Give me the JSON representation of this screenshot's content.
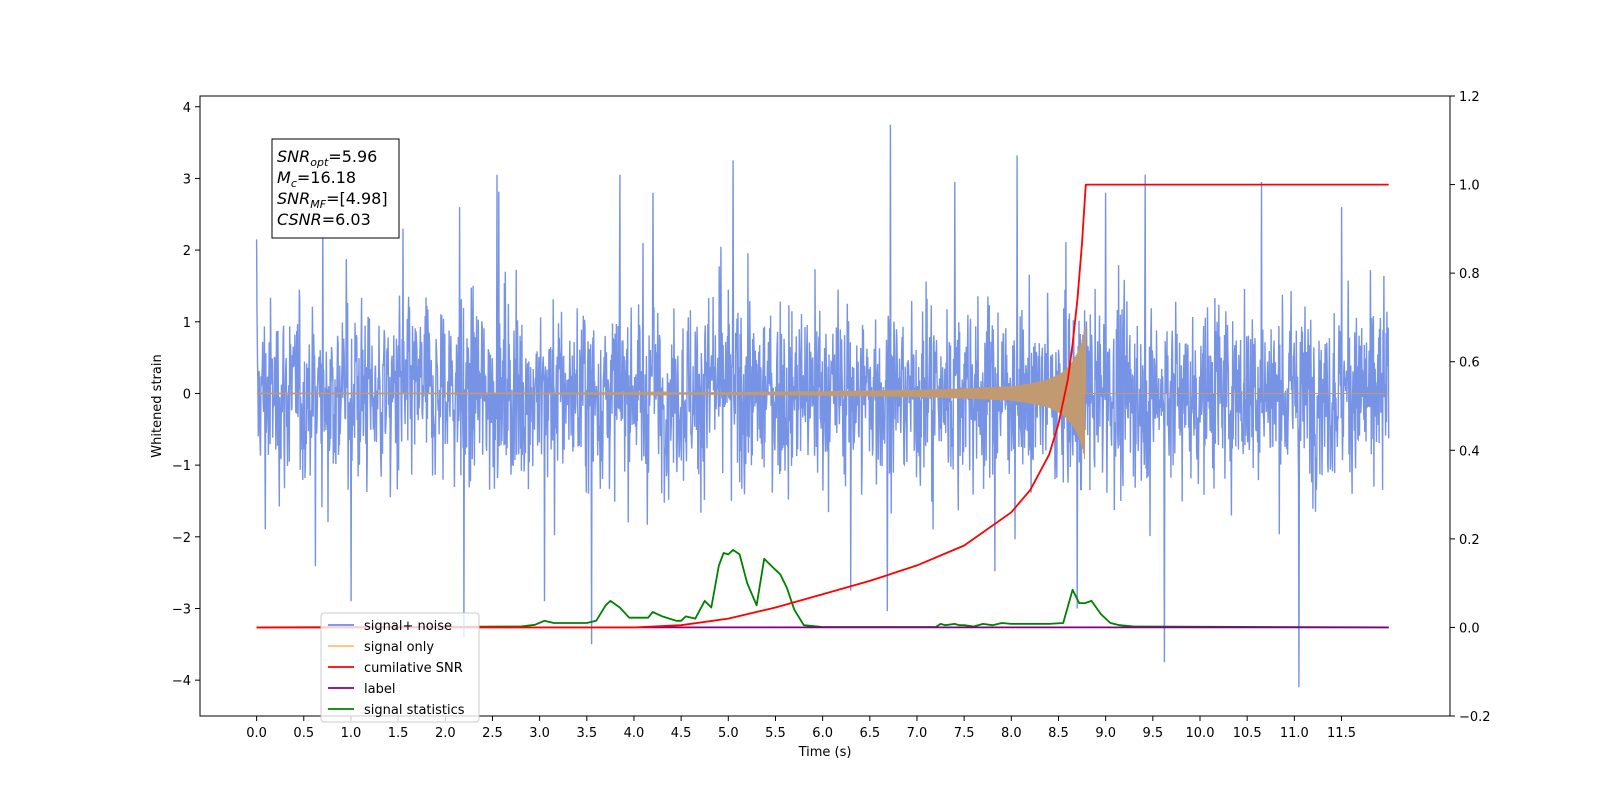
{
  "chart_data": {
    "type": "line",
    "title": "",
    "xlabel": "Time (s)",
    "ylabel": "Whitened strain",
    "y2label": "",
    "xlim": [
      -0.6,
      12.65
    ],
    "ylim": [
      -4.5,
      4.15
    ],
    "y2lim": [
      -0.2,
      1.2
    ],
    "x_ticks": [
      0.0,
      0.5,
      1.0,
      1.5,
      2.0,
      2.5,
      3.0,
      3.5,
      4.0,
      4.5,
      5.0,
      5.5,
      6.0,
      6.5,
      7.0,
      7.5,
      8.0,
      8.5,
      9.0,
      9.5,
      10.0,
      10.5,
      11.0,
      11.5
    ],
    "x_tick_labels": [
      "0.0",
      "0.5",
      "1.0",
      "1.5",
      "2.0",
      "2.5",
      "3.0",
      "3.5",
      "4.0",
      "4.5",
      "5.0",
      "5.5",
      "6.0",
      "6.5",
      "7.0",
      "7.5",
      "8.0",
      "8.5",
      "9.0",
      "9.5",
      "10.0",
      "10.5",
      "11.0",
      "11.5"
    ],
    "y_ticks": [
      -4,
      -3,
      -2,
      -1,
      0,
      1,
      2,
      3,
      4
    ],
    "y_tick_labels": [
      "−4",
      "−3",
      "−2",
      "−1",
      "0",
      "1",
      "2",
      "3",
      "4"
    ],
    "y2_ticks": [
      -0.2,
      0.0,
      0.2,
      0.4,
      0.6,
      0.8,
      1.0,
      1.2
    ],
    "y2_tick_labels": [
      "−0.2",
      "0.0",
      "0.2",
      "0.4",
      "0.6",
      "0.8",
      "1.0",
      "1.2"
    ],
    "grid": false,
    "legend_position": "lower-left",
    "annotation": {
      "lines": [
        {
          "sym": "SNR",
          "sub": "opt",
          "value": "=5.96"
        },
        {
          "sym": "M",
          "sub": "c",
          "value": "=16.18"
        },
        {
          "sym": "SNR",
          "sub": "MF",
          "value": "=[4.98]"
        },
        {
          "sym": "CSNR",
          "sub": "",
          "value": "=6.03"
        }
      ]
    },
    "noise": {
      "x_range": [
        0.0,
        12.0
      ],
      "typical_range": [
        -1.6,
        1.5
      ],
      "peak_range": [
        -4.1,
        3.75
      ],
      "spikes": [
        {
          "x": 0.0,
          "y": 2.15
        },
        {
          "x": 0.7,
          "y": 2.3
        },
        {
          "x": 1.0,
          "y": -2.9
        },
        {
          "x": 1.55,
          "y": 2.3
        },
        {
          "x": 2.15,
          "y": 2.6
        },
        {
          "x": 2.2,
          "y": -3.4
        },
        {
          "x": 2.55,
          "y": 3.05
        },
        {
          "x": 3.05,
          "y": -2.9
        },
        {
          "x": 3.55,
          "y": -3.5
        },
        {
          "x": 3.85,
          "y": 3.05
        },
        {
          "x": 4.2,
          "y": 2.8
        },
        {
          "x": 5.05,
          "y": 3.25
        },
        {
          "x": 6.3,
          "y": -2.75
        },
        {
          "x": 6.72,
          "y": 3.75
        },
        {
          "x": 7.4,
          "y": 2.95
        },
        {
          "x": 8.7,
          "y": -3.0
        },
        {
          "x": 9.0,
          "y": 2.8
        },
        {
          "x": 9.42,
          "y": 3.05
        },
        {
          "x": 9.62,
          "y": -3.75
        },
        {
          "x": 10.65,
          "y": 2.95
        },
        {
          "x": 11.05,
          "y": -4.1
        },
        {
          "x": 11.5,
          "y": 2.6
        }
      ]
    },
    "signal_envelope": [
      {
        "x": 3.0,
        "a": 0.005
      },
      {
        "x": 4.0,
        "a": 0.01
      },
      {
        "x": 5.0,
        "a": 0.02
      },
      {
        "x": 6.0,
        "a": 0.03
      },
      {
        "x": 7.0,
        "a": 0.05
      },
      {
        "x": 7.5,
        "a": 0.07
      },
      {
        "x": 8.0,
        "a": 0.1
      },
      {
        "x": 8.2,
        "a": 0.14
      },
      {
        "x": 8.4,
        "a": 0.2
      },
      {
        "x": 8.55,
        "a": 0.3
      },
      {
        "x": 8.65,
        "a": 0.45
      },
      {
        "x": 8.72,
        "a": 0.62
      },
      {
        "x": 8.76,
        "a": 0.8
      },
      {
        "x": 8.78,
        "a": 0.95
      }
    ],
    "signal_end": 8.79,
    "cumulative_snr": {
      "x": [
        0.0,
        4.0,
        4.5,
        5.0,
        5.5,
        6.0,
        6.5,
        7.0,
        7.5,
        8.0,
        8.2,
        8.4,
        8.5,
        8.6,
        8.65,
        8.7,
        8.75,
        8.78,
        8.79,
        12.0
      ],
      "y": [
        0.0,
        0.0,
        0.005,
        0.02,
        0.045,
        0.075,
        0.105,
        0.14,
        0.185,
        0.26,
        0.31,
        0.39,
        0.46,
        0.56,
        0.64,
        0.74,
        0.87,
        0.97,
        1.0,
        1.0
      ]
    },
    "label_line": {
      "x": [
        0.0,
        12.0
      ],
      "y": [
        0.0,
        0.0
      ]
    },
    "signal_statistics": {
      "x": [
        0.0,
        2.8,
        2.95,
        3.05,
        3.15,
        3.3,
        3.5,
        3.6,
        3.7,
        3.75,
        3.85,
        3.95,
        4.05,
        4.15,
        4.2,
        4.3,
        4.45,
        4.5,
        4.55,
        4.65,
        4.75,
        4.82,
        4.9,
        4.95,
        5.0,
        5.05,
        5.12,
        5.2,
        5.3,
        5.38,
        5.45,
        5.55,
        5.62,
        5.7,
        5.8,
        6.0,
        7.2,
        7.25,
        7.3,
        7.4,
        7.45,
        7.5,
        7.6,
        7.7,
        7.8,
        7.9,
        8.0,
        8.2,
        8.4,
        8.55,
        8.65,
        8.72,
        8.78,
        8.85,
        8.95,
        9.05,
        9.15,
        9.3,
        12.0
      ],
      "y": [
        0.0,
        0.002,
        0.006,
        0.015,
        0.01,
        0.01,
        0.01,
        0.015,
        0.05,
        0.06,
        0.045,
        0.022,
        0.022,
        0.022,
        0.035,
        0.025,
        0.015,
        0.015,
        0.025,
        0.02,
        0.06,
        0.045,
        0.14,
        0.168,
        0.165,
        0.175,
        0.165,
        0.1,
        0.05,
        0.155,
        0.14,
        0.12,
        0.09,
        0.04,
        0.005,
        0.001,
        0.001,
        0.008,
        0.005,
        0.008,
        0.005,
        0.005,
        0.002,
        0.008,
        0.005,
        0.01,
        0.008,
        0.008,
        0.008,
        0.01,
        0.085,
        0.055,
        0.055,
        0.06,
        0.03,
        0.01,
        0.005,
        0.002,
        0.0
      ]
    },
    "series": [
      {
        "name": "signal+ noise",
        "color": "#6f8de5",
        "axis": "left"
      },
      {
        "name": "signal only",
        "color": "#ffc36b",
        "axis": "left"
      },
      {
        "name": "cumilative SNR",
        "color": "#ff0000",
        "axis": "right"
      },
      {
        "name": "label",
        "color": "#800080",
        "axis": "right"
      },
      {
        "name": "signal statistics",
        "color": "#008000",
        "axis": "right"
      }
    ]
  }
}
